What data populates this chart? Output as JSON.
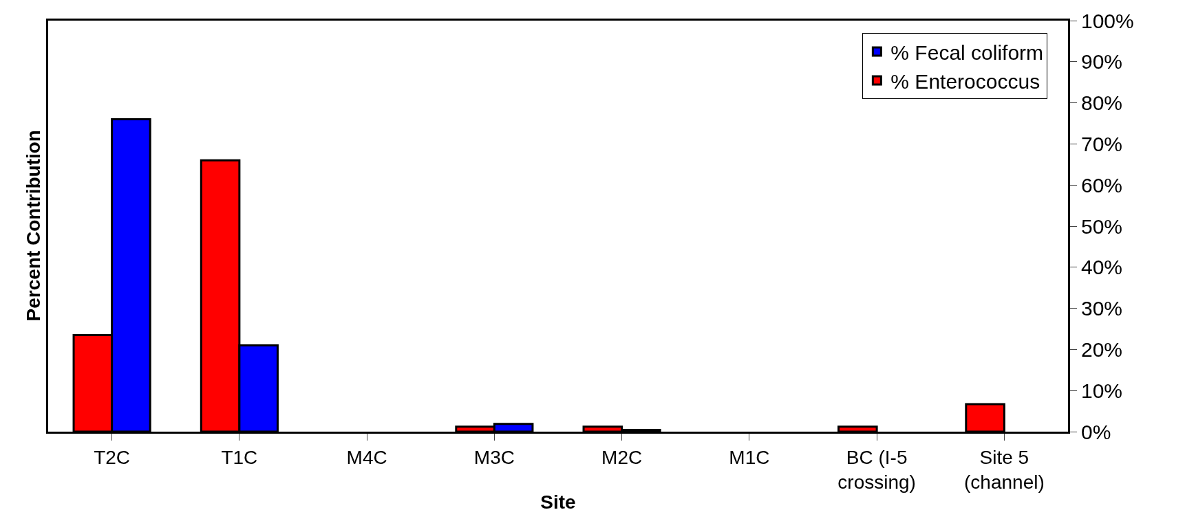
{
  "chart_data": {
    "type": "bar",
    "xlabel": "Site",
    "ylabel": "Percent Contribution",
    "categories": [
      "T2C",
      "T1C",
      "M4C",
      "M3C",
      "M2C",
      "M1C",
      "BC (I-5 crossing)",
      "Site 5 (channel)"
    ],
    "series": [
      {
        "name": "% Enterococcus",
        "color": "#ff0000",
        "values": [
          23.5,
          66,
          null,
          1.2,
          1.2,
          null,
          1.2,
          6.7
        ]
      },
      {
        "name": "% Fecal coliform",
        "color": "#0000ff",
        "values": [
          76,
          21,
          null,
          1.9,
          0.4,
          null,
          null,
          null
        ]
      }
    ],
    "ylim": [
      0,
      100
    ],
    "yticks": [
      {
        "value": 0,
        "label": "0%"
      },
      {
        "value": 10,
        "label": "10%"
      },
      {
        "value": 20,
        "label": "20%"
      },
      {
        "value": 30,
        "label": "30%"
      },
      {
        "value": 40,
        "label": "40%"
      },
      {
        "value": 50,
        "label": "50%"
      },
      {
        "value": 60,
        "label": "60%"
      },
      {
        "value": 70,
        "label": "70%"
      },
      {
        "value": 80,
        "label": "80%"
      },
      {
        "value": 90,
        "label": "90%"
      },
      {
        "value": 100,
        "label": "100%"
      }
    ],
    "legend": "top right"
  }
}
